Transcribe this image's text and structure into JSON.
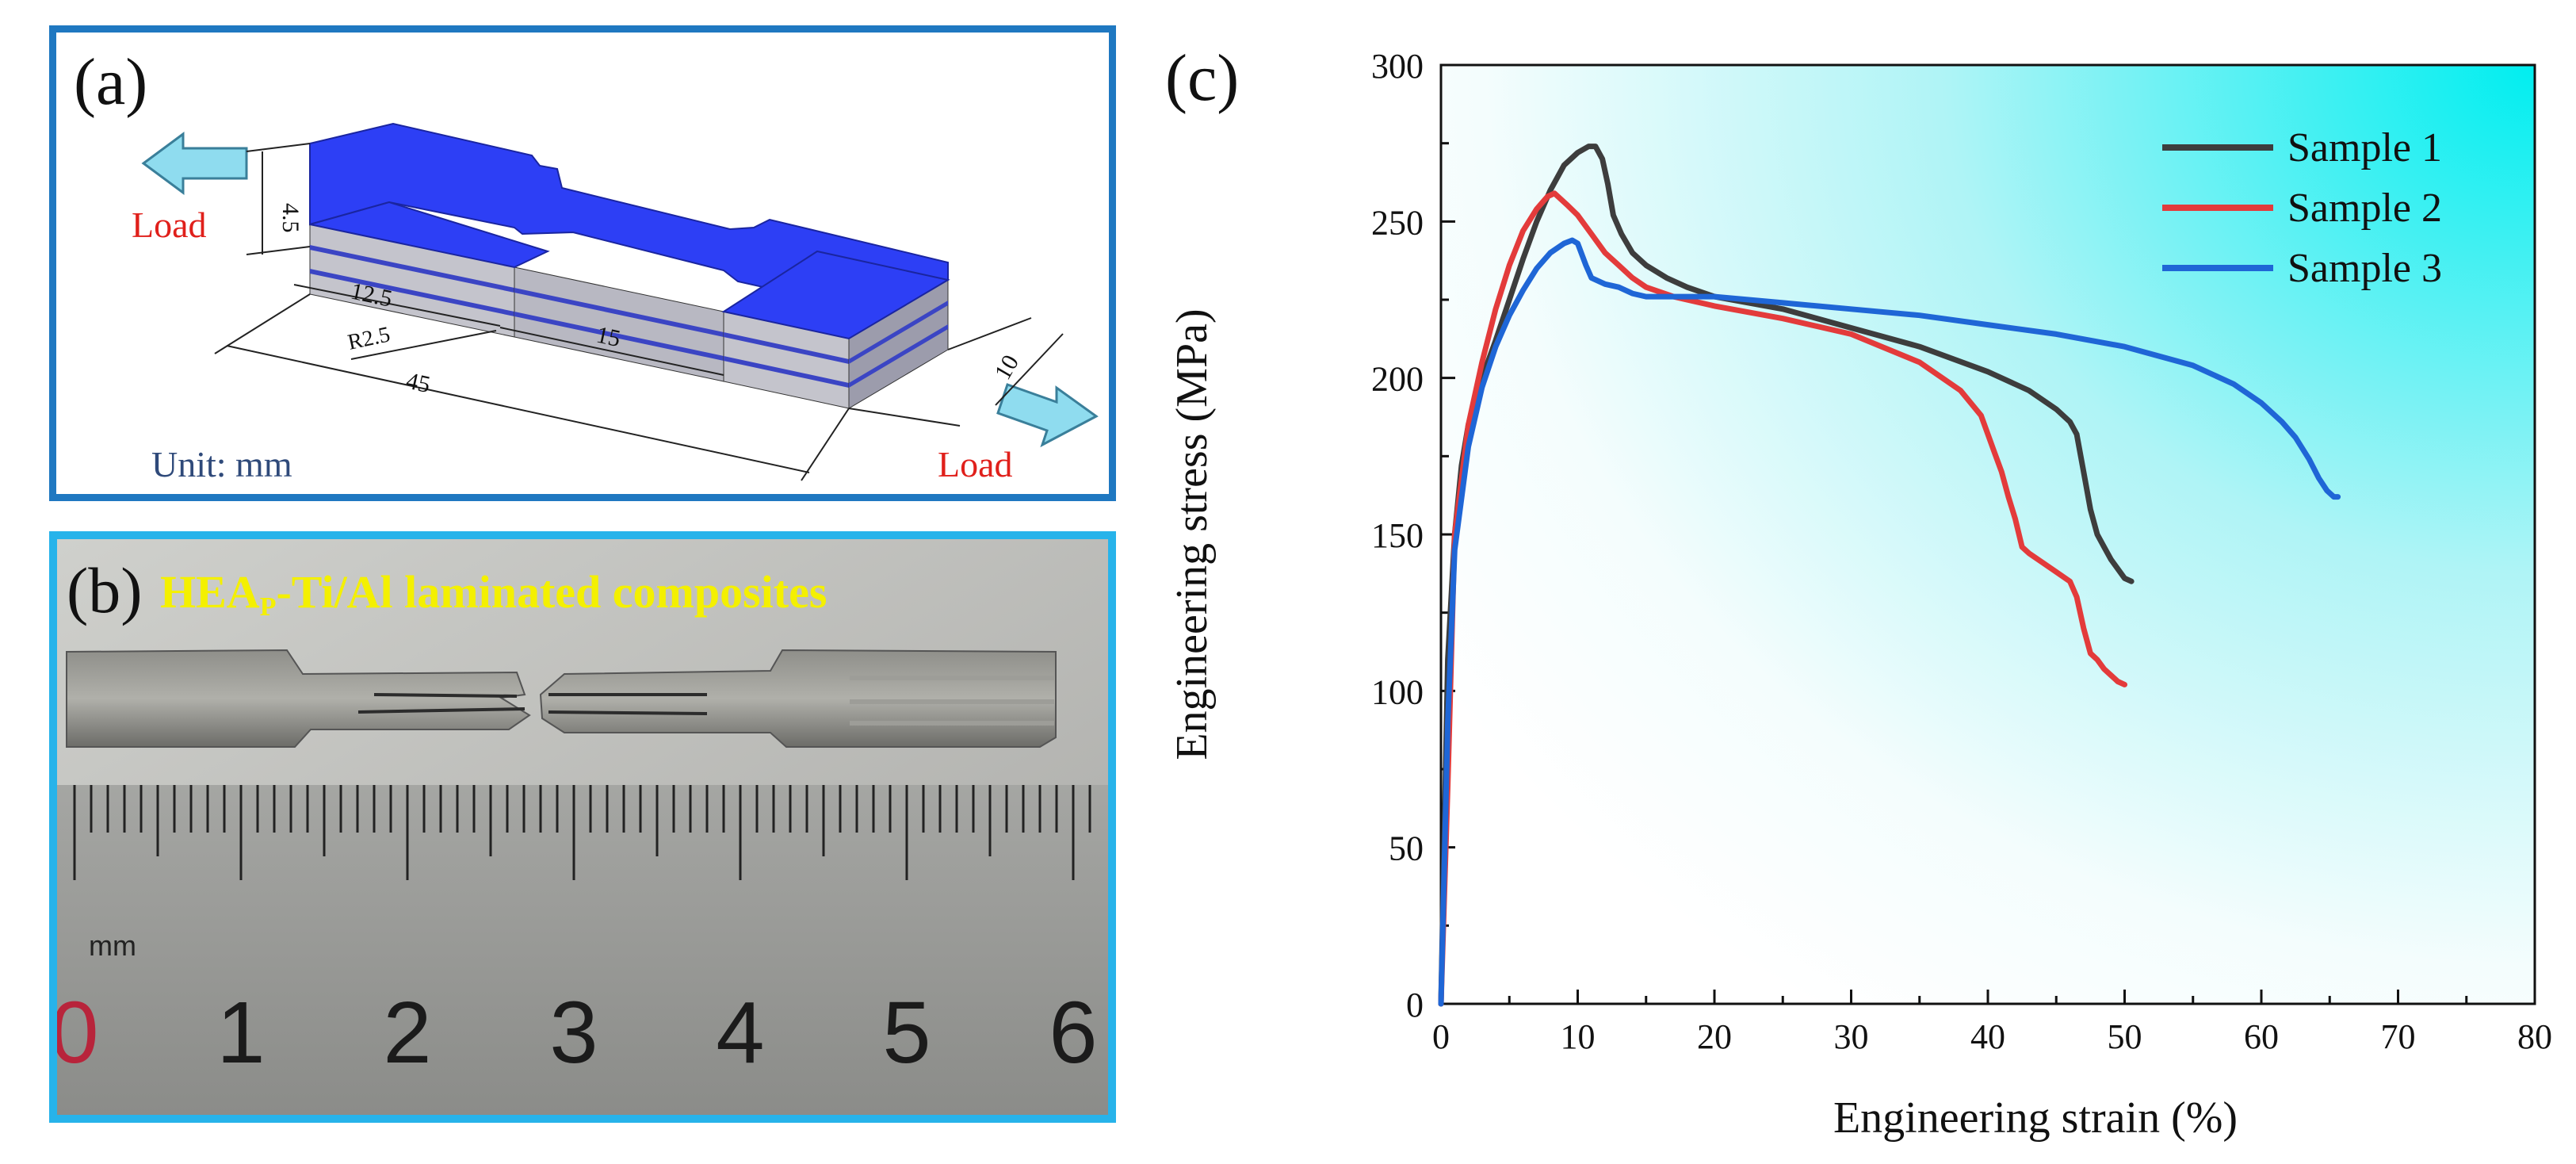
{
  "panel_a": {
    "label": "(a)",
    "load_left": "Load",
    "load_right": "Load",
    "unit": "Unit: mm",
    "dimensions": {
      "thickness": "4.5",
      "grip_length": "12.5",
      "radius": "R2.5",
      "gauge_length": "15",
      "total_length": "45",
      "width": "10"
    },
    "colors": {
      "top": "#2d3ff5",
      "layer_light": "#c4c4cc",
      "layer_dark": "#3b45c4",
      "arrow": "#8fdcef",
      "load_text": "#e0201b",
      "unit_text": "#2f4a7a"
    }
  },
  "panel_b": {
    "label": "(b)",
    "title_main": "HEA",
    "title_sub": "P",
    "title_rest": "-Ti/Al laminated composites",
    "ruler_unit": "mm",
    "ruler_numbers": [
      "0",
      "1",
      "2",
      "3",
      "4",
      "5",
      "6"
    ],
    "title_color": "#f4f000"
  },
  "chart_data": {
    "type": "line",
    "panel_label": "(c)",
    "xlabel": "Engineering strain (%)",
    "ylabel": "Engineering stress (MPa)",
    "xlim": [
      0,
      80
    ],
    "ylim": [
      0,
      300
    ],
    "xticks": [
      0,
      10,
      20,
      30,
      40,
      50,
      60,
      70,
      80
    ],
    "yticks": [
      0,
      50,
      100,
      150,
      200,
      250,
      300
    ],
    "legend_position": "top-right",
    "series": [
      {
        "name": "Sample 1",
        "color": "#3d3d3d",
        "x": [
          0,
          0.5,
          1.0,
          1.5,
          2.0,
          3.0,
          4.0,
          5.0,
          6.0,
          7.0,
          8.0,
          9.0,
          10.0,
          10.8,
          11.3,
          11.8,
          12.2,
          12.6,
          13.2,
          14.0,
          15.0,
          16.5,
          18.0,
          20.0,
          25.0,
          30.0,
          35.0,
          40.0,
          43.0,
          45.0,
          46.0,
          46.5,
          47.0,
          47.5,
          48.0,
          48.5,
          49.0,
          49.5,
          50.0,
          50.5
        ],
        "values": [
          0,
          110,
          150,
          172,
          185,
          200,
          212,
          225,
          238,
          250,
          260,
          268,
          272,
          274,
          274,
          270,
          262,
          252,
          246,
          240,
          236,
          232,
          229,
          226,
          222,
          216,
          210,
          202,
          196,
          190,
          186,
          182,
          170,
          158,
          150,
          146,
          142,
          139,
          136,
          135
        ]
      },
      {
        "name": "Sample 2",
        "color": "#e33b3b",
        "x": [
          0,
          0.5,
          1.0,
          2.0,
          3.0,
          4.0,
          5.0,
          6.0,
          7.0,
          7.8,
          8.3,
          8.8,
          9.3,
          10.0,
          11.0,
          12.0,
          13.0,
          14.0,
          15.0,
          17.0,
          20.0,
          25.0,
          30.0,
          35.0,
          38.0,
          39.5,
          40.0,
          40.5,
          41.0,
          41.5,
          42.0,
          42.5,
          43.0,
          44.0,
          45.0,
          46.0,
          46.5,
          47.0,
          47.5,
          48.0,
          48.5,
          49.0,
          49.5,
          50.0
        ],
        "values": [
          0,
          70,
          150,
          185,
          205,
          222,
          236,
          247,
          254,
          258,
          259,
          257,
          255,
          252,
          246,
          240,
          236,
          232,
          229,
          226,
          223,
          219,
          214,
          205,
          196,
          188,
          182,
          176,
          170,
          162,
          155,
          146,
          144,
          141,
          138,
          135,
          130,
          120,
          112,
          110,
          107,
          105,
          103,
          102
        ]
      },
      {
        "name": "Sample 3",
        "color": "#1f66d6",
        "x": [
          0,
          0.5,
          1.0,
          2.0,
          3.0,
          4.0,
          5.0,
          6.0,
          7.0,
          8.0,
          9.0,
          9.6,
          10.0,
          10.6,
          11.0,
          12.0,
          13.0,
          14.0,
          15.0,
          17.0,
          20.0,
          25.0,
          30.0,
          35.0,
          40.0,
          45.0,
          50.0,
          55.0,
          58.0,
          60.0,
          61.5,
          62.5,
          63.5,
          64.2,
          64.8,
          65.3,
          65.6
        ],
        "values": [
          0,
          90,
          145,
          178,
          197,
          210,
          220,
          228,
          235,
          240,
          243,
          244,
          243,
          236,
          232,
          230,
          229,
          227,
          226,
          226,
          226,
          224,
          222,
          220,
          217,
          214,
          210,
          204,
          198,
          192,
          186,
          181,
          174,
          168,
          164,
          162,
          162
        ]
      }
    ]
  }
}
